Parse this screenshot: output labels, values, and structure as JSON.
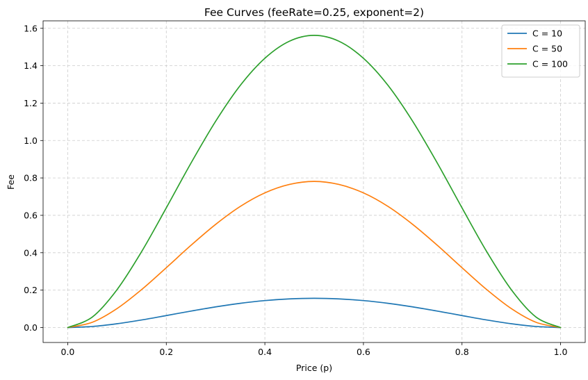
{
  "chart_data": {
    "type": "line",
    "title": "Fee Curves (feeRate=0.25, exponent=2)",
    "xlabel": "Price (p)",
    "ylabel": "Fee",
    "xlim": [
      -0.05,
      1.05
    ],
    "ylim": [
      -0.08,
      1.64
    ],
    "x_ticks": [
      "0.0",
      "0.2",
      "0.4",
      "0.6",
      "0.8",
      "1.0"
    ],
    "y_ticks": [
      "0.0",
      "0.2",
      "0.4",
      "0.6",
      "0.8",
      "1.0",
      "1.2",
      "1.4",
      "1.6"
    ],
    "grid": true,
    "legend_position": "top-right",
    "x": [
      0,
      0.05,
      0.1,
      0.15,
      0.2,
      0.25,
      0.3,
      0.35,
      0.4,
      0.45,
      0.5,
      0.55,
      0.6,
      0.65,
      0.7,
      0.75,
      0.8,
      0.85,
      0.9,
      0.95,
      1
    ],
    "series": [
      {
        "name": "C = 10",
        "color": "#1f77b4",
        "values": [
          0,
          0.0056,
          0.0203,
          0.0406,
          0.064,
          0.0879,
          0.1103,
          0.1295,
          0.144,
          0.153,
          0.1563,
          0.153,
          0.144,
          0.1295,
          0.1103,
          0.0879,
          0.064,
          0.0406,
          0.0203,
          0.0056,
          0
        ]
      },
      {
        "name": "C = 50",
        "color": "#ff7f0e",
        "values": [
          0,
          0.0282,
          0.1013,
          0.2032,
          0.32,
          0.4395,
          0.5513,
          0.6473,
          0.72,
          0.7652,
          0.7813,
          0.7652,
          0.72,
          0.6473,
          0.5513,
          0.4395,
          0.32,
          0.2032,
          0.1013,
          0.0282,
          0
        ]
      },
      {
        "name": "C = 100",
        "color": "#2ca02c",
        "values": [
          0,
          0.0564,
          0.2025,
          0.4064,
          0.64,
          0.8789,
          1.1025,
          1.2945,
          1.44,
          1.5314,
          1.5625,
          1.5314,
          1.44,
          1.2945,
          1.1025,
          0.8789,
          0.64,
          0.4064,
          0.2025,
          0.0564,
          0
        ]
      }
    ]
  }
}
